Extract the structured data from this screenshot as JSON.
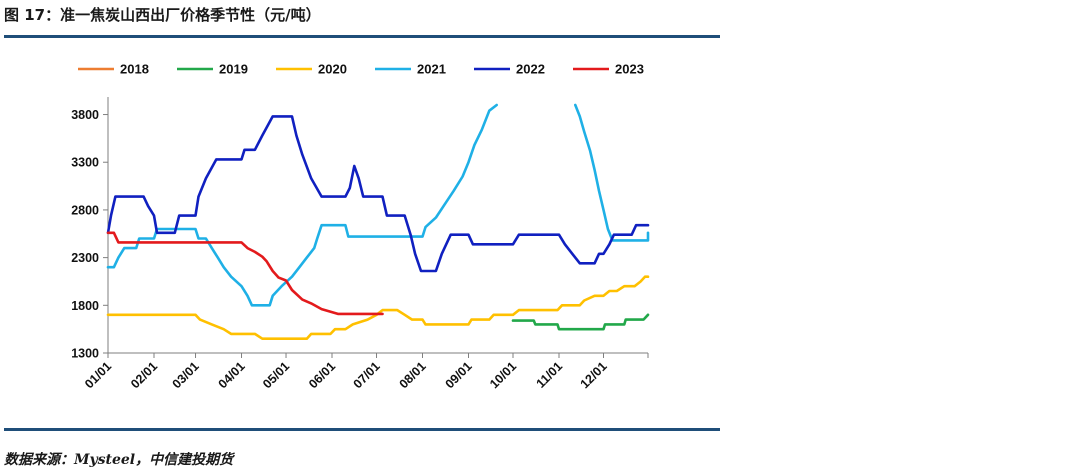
{
  "figure": {
    "title": "图 17：准一焦炭山西出厂价格季节性（元/吨）",
    "source": "数据来源：Mysteel，中信建投期货"
  },
  "chart_data": {
    "type": "line",
    "title": "",
    "xlabel": "",
    "ylabel": "",
    "ylim": [
      1300,
      3900
    ],
    "yticks": [
      1300,
      1800,
      2300,
      2800,
      3300,
      3800
    ],
    "xticks": [
      "01/01",
      "02/01",
      "03/01",
      "04/01",
      "05/01",
      "06/01",
      "07/01",
      "08/01",
      "09/01",
      "10/01",
      "11/01",
      "12/01"
    ],
    "grid": false,
    "legend_position": "top",
    "series": [
      {
        "name": "2018",
        "color": "#ed7d31",
        "points": []
      },
      {
        "name": "2019",
        "color": "#22a84a",
        "points": [
          [
            "10/01",
            1640
          ],
          [
            "10/15",
            1640
          ],
          [
            "10/16",
            1600
          ],
          [
            "10/31",
            1600
          ],
          [
            "11/01",
            1550
          ],
          [
            "12/01",
            1550
          ],
          [
            "12/02",
            1600
          ],
          [
            "12/15",
            1600
          ],
          [
            "12/16",
            1650
          ],
          [
            "12/28",
            1650
          ],
          [
            "12/31",
            1700
          ]
        ]
      },
      {
        "name": "2020",
        "color": "#ffc000",
        "points": [
          [
            "01/01",
            1700
          ],
          [
            "03/01",
            1700
          ],
          [
            "03/04",
            1650
          ],
          [
            "03/12",
            1600
          ],
          [
            "03/20",
            1550
          ],
          [
            "03/25",
            1500
          ],
          [
            "04/10",
            1500
          ],
          [
            "04/15",
            1450
          ],
          [
            "05/15",
            1450
          ],
          [
            "05/18",
            1500
          ],
          [
            "05/31",
            1500
          ],
          [
            "06/03",
            1550
          ],
          [
            "06/10",
            1550
          ],
          [
            "06/15",
            1600
          ],
          [
            "06/25",
            1650
          ],
          [
            "07/01",
            1700
          ],
          [
            "07/05",
            1750
          ],
          [
            "07/15",
            1750
          ],
          [
            "07/20",
            1700
          ],
          [
            "07/25",
            1650
          ],
          [
            "08/01",
            1650
          ],
          [
            "08/03",
            1600
          ],
          [
            "09/01",
            1600
          ],
          [
            "09/03",
            1650
          ],
          [
            "09/15",
            1650
          ],
          [
            "09/18",
            1700
          ],
          [
            "10/01",
            1700
          ],
          [
            "10/05",
            1750
          ],
          [
            "10/31",
            1750
          ],
          [
            "11/03",
            1800
          ],
          [
            "11/15",
            1800
          ],
          [
            "11/18",
            1850
          ],
          [
            "11/25",
            1900
          ],
          [
            "12/01",
            1900
          ],
          [
            "12/05",
            1950
          ],
          [
            "12/10",
            1950
          ],
          [
            "12/15",
            2000
          ],
          [
            "12/22",
            2000
          ],
          [
            "12/26",
            2050
          ],
          [
            "12/29",
            2100
          ],
          [
            "12/31",
            2100
          ]
        ]
      },
      {
        "name": "2021",
        "color": "#1fb0e6",
        "points": [
          [
            "01/01",
            2200
          ],
          [
            "01/05",
            2200
          ],
          [
            "01/08",
            2300
          ],
          [
            "01/12",
            2400
          ],
          [
            "01/20",
            2400
          ],
          [
            "01/22",
            2500
          ],
          [
            "02/01",
            2500
          ],
          [
            "02/03",
            2600
          ],
          [
            "03/01",
            2600
          ],
          [
            "03/03",
            2500
          ],
          [
            "03/08",
            2500
          ],
          [
            "03/12",
            2400
          ],
          [
            "03/16",
            2300
          ],
          [
            "03/20",
            2200
          ],
          [
            "03/25",
            2100
          ],
          [
            "04/01",
            2000
          ],
          [
            "04/05",
            1900
          ],
          [
            "04/08",
            1800
          ],
          [
            "04/20",
            1800
          ],
          [
            "04/22",
            1900
          ],
          [
            "04/28",
            2000
          ],
          [
            "05/05",
            2100
          ],
          [
            "05/10",
            2200
          ],
          [
            "05/15",
            2300
          ],
          [
            "05/20",
            2400
          ],
          [
            "05/22",
            2500
          ],
          [
            "05/25",
            2640
          ],
          [
            "06/10",
            2640
          ],
          [
            "06/12",
            2520
          ],
          [
            "08/01",
            2520
          ],
          [
            "08/03",
            2620
          ],
          [
            "08/10",
            2720
          ],
          [
            "08/16",
            2860
          ],
          [
            "08/22",
            3000
          ],
          [
            "08/28",
            3150
          ],
          [
            "09/01",
            3300
          ],
          [
            "09/05",
            3480
          ],
          [
            "09/10",
            3640
          ],
          [
            "09/15",
            3840
          ],
          [
            "09/20",
            3900
          ]
        ],
        "segment2": [
          [
            "11/12",
            3900
          ],
          [
            "11/15",
            3780
          ],
          [
            "11/18",
            3620
          ],
          [
            "11/22",
            3420
          ],
          [
            "11/25",
            3220
          ],
          [
            "11/28",
            3000
          ],
          [
            "12/01",
            2800
          ],
          [
            "12/04",
            2600
          ],
          [
            "12/07",
            2480
          ],
          [
            "12/31",
            2480
          ],
          [
            "12/31",
            2560
          ]
        ]
      },
      {
        "name": "2022",
        "color": "#1020c0",
        "points": [
          [
            "01/01",
            2560
          ],
          [
            "01/03",
            2740
          ],
          [
            "01/06",
            2940
          ],
          [
            "01/25",
            2940
          ],
          [
            "01/28",
            2840
          ],
          [
            "02/01",
            2740
          ],
          [
            "02/03",
            2560
          ],
          [
            "02/15",
            2560
          ],
          [
            "02/18",
            2740
          ],
          [
            "03/01",
            2740
          ],
          [
            "03/03",
            2940
          ],
          [
            "03/08",
            3130
          ],
          [
            "03/15",
            3330
          ],
          [
            "04/01",
            3330
          ],
          [
            "04/03",
            3430
          ],
          [
            "04/10",
            3430
          ],
          [
            "04/15",
            3580
          ],
          [
            "04/22",
            3780
          ],
          [
            "05/05",
            3780
          ],
          [
            "05/08",
            3580
          ],
          [
            "05/12",
            3380
          ],
          [
            "05/18",
            3130
          ],
          [
            "05/25",
            2940
          ],
          [
            "06/10",
            2940
          ],
          [
            "06/13",
            3030
          ],
          [
            "06/16",
            3260
          ],
          [
            "06/19",
            3130
          ],
          [
            "06/22",
            2940
          ],
          [
            "07/05",
            2940
          ],
          [
            "07/08",
            2740
          ],
          [
            "07/20",
            2740
          ],
          [
            "07/24",
            2540
          ],
          [
            "07/27",
            2340
          ],
          [
            "07/31",
            2160
          ],
          [
            "08/10",
            2160
          ],
          [
            "08/14",
            2340
          ],
          [
            "08/20",
            2540
          ],
          [
            "09/01",
            2540
          ],
          [
            "09/04",
            2440
          ],
          [
            "10/01",
            2440
          ],
          [
            "10/05",
            2540
          ],
          [
            "11/01",
            2540
          ],
          [
            "11/05",
            2440
          ],
          [
            "11/10",
            2340
          ],
          [
            "11/15",
            2240
          ],
          [
            "11/25",
            2240
          ],
          [
            "11/28",
            2340
          ],
          [
            "12/01",
            2340
          ],
          [
            "12/05",
            2440
          ],
          [
            "12/08",
            2540
          ],
          [
            "12/20",
            2540
          ],
          [
            "12/23",
            2640
          ],
          [
            "12/31",
            2640
          ]
        ]
      },
      {
        "name": "2023",
        "color": "#e31a1c",
        "points": [
          [
            "01/01",
            2560
          ],
          [
            "01/05",
            2560
          ],
          [
            "01/08",
            2460
          ],
          [
            "04/01",
            2460
          ],
          [
            "04/05",
            2400
          ],
          [
            "04/10",
            2360
          ],
          [
            "04/15",
            2310
          ],
          [
            "04/18",
            2260
          ],
          [
            "04/22",
            2160
          ],
          [
            "04/26",
            2090
          ],
          [
            "05/01",
            2060
          ],
          [
            "05/05",
            1960
          ],
          [
            "05/12",
            1860
          ],
          [
            "05/18",
            1820
          ],
          [
            "05/25",
            1760
          ],
          [
            "06/05",
            1710
          ],
          [
            "07/05",
            1710
          ]
        ]
      }
    ]
  }
}
